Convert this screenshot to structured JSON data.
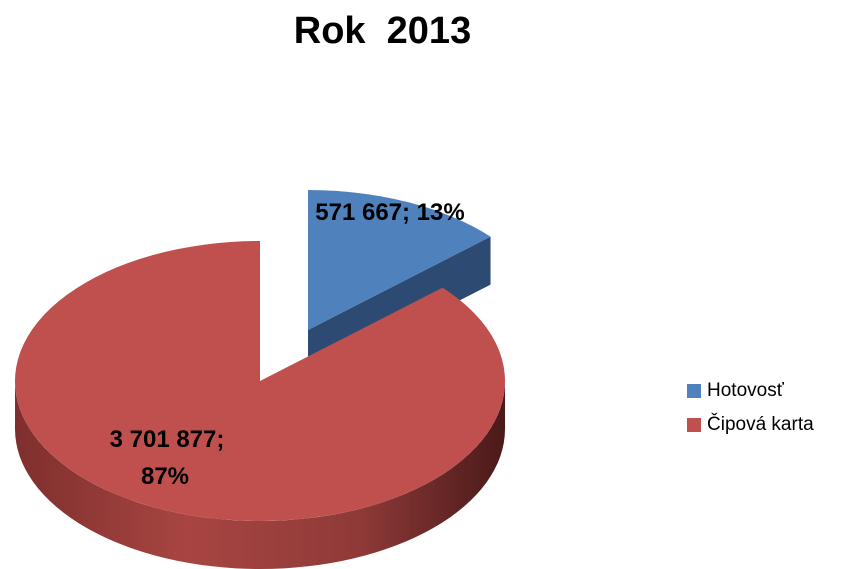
{
  "chart_data": {
    "type": "pie",
    "title": "Rok  2013",
    "categories": [
      "Hotovosť",
      "Čipová karta"
    ],
    "values": [
      571667,
      3701877
    ],
    "percentages": [
      13,
      87
    ],
    "data_labels": [
      {
        "line1": "571 667; 13%",
        "line2": ""
      },
      {
        "line1": "3 701 877;",
        "line2": "87%"
      }
    ],
    "colors": [
      "#4F81BD",
      "#C0504D"
    ],
    "legend_position": "right",
    "style": "3d-exploded"
  }
}
